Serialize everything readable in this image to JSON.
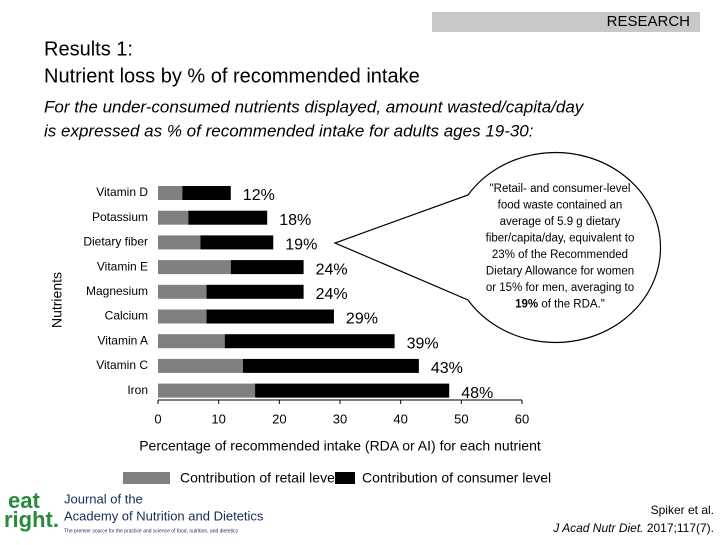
{
  "header": {
    "tag": "RESEARCH",
    "title_line1": "Results 1:",
    "title_line2": "Nutrient loss by % of recommended intake",
    "subtitle_line1": "For the under-consumed nutrients displayed, amount wasted/capita/day",
    "subtitle_line2": "is expressed as % of recommended intake for adults ages 19-30:"
  },
  "chart_data": {
    "type": "stacked-barh",
    "categories": [
      "Vitamin D",
      "Potassium",
      "Dietary fiber",
      "Vitamin E",
      "Magnesium",
      "Calcium",
      "Vitamin A",
      "Vitamin C",
      "Iron"
    ],
    "series": [
      {
        "name": "Contribution of retail level",
        "color": "#808080",
        "values": [
          4,
          5,
          7,
          12,
          8,
          8,
          11,
          14,
          16
        ]
      },
      {
        "name": "Contribution of consumer level",
        "color": "#000000",
        "values": [
          8,
          13,
          12,
          12,
          16,
          21,
          28,
          29,
          32
        ]
      }
    ],
    "totals": {
      "values": [
        12,
        18,
        19,
        24,
        24,
        29,
        39,
        43,
        48
      ],
      "value_labels": [
        "12%",
        "18%",
        "19%",
        "24%",
        "24%",
        "29%",
        "39%",
        "43%",
        "48%"
      ]
    },
    "xlabel": "Percentage of recommended intake (RDA or AI) for each nutrient",
    "ylabel": "Nutrients",
    "xlim": [
      0,
      60
    ],
    "xticks": [
      0,
      10,
      20,
      30,
      40,
      50,
      60
    ],
    "grid": false,
    "legend": "bottom"
  },
  "callout": {
    "lines": [
      "\"Retail- and consumer-level",
      "food waste contained an",
      "average of 5.9 g dietary",
      "fiber/capita/day, equivalent to",
      "23% of the Recommended",
      "Dietary Allowance for women",
      "or 15% for men, averaging to"
    ],
    "bold": "19%",
    "end": " of the RDA.\""
  },
  "logo": {
    "top": "eat",
    "bottom": "right.",
    "journal_line1": "Journal of the",
    "journal_line2": "Academy of Nutrition and Dietetics",
    "tagline": "The premier source for the practice and science of food, nutrition, and dietetics"
  },
  "citation": {
    "line1": "Spiker et al.",
    "journal": "J Acad Nutr Diet.",
    "ref": " 2017;117(7)."
  }
}
